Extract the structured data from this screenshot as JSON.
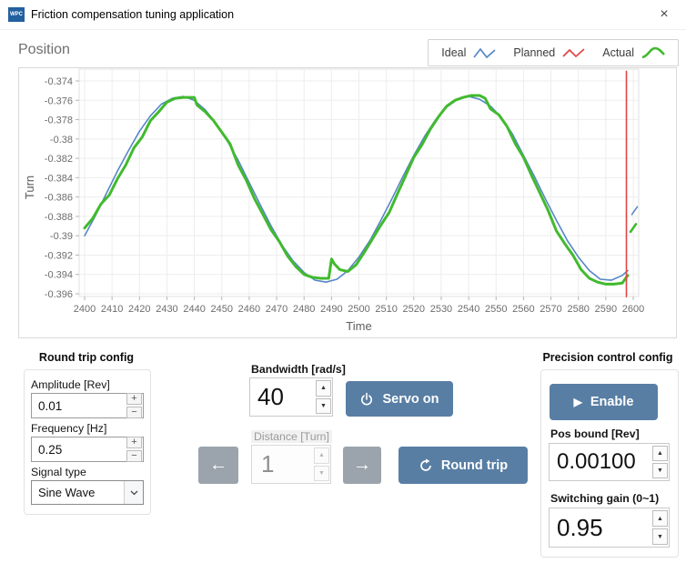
{
  "window": {
    "title": "Friction compensation tuning application",
    "close": "×",
    "app_badge": "WPC"
  },
  "chart_data": {
    "type": "line",
    "title": "Position",
    "xlabel": "Time",
    "ylabel": "Turn",
    "xlim": [
      2398,
      2602
    ],
    "ylim": [
      -0.3966,
      -0.3729
    ],
    "grid": true,
    "legend_position": "top-right",
    "x_ticks": [
      2400,
      2410,
      2420,
      2430,
      2440,
      2450,
      2460,
      2470,
      2480,
      2490,
      2500,
      2510,
      2520,
      2530,
      2540,
      2550,
      2560,
      2570,
      2580,
      2590,
      2600
    ],
    "y_ticks": [
      -0.374,
      -0.376,
      -0.378,
      -0.38,
      -0.382,
      -0.384,
      -0.386,
      -0.388,
      -0.39,
      -0.392,
      -0.394,
      -0.396
    ],
    "y_tick_labels": [
      "-0.374",
      "-0.376",
      "-0.378",
      "-0.38",
      "-0.382",
      "-0.384",
      "-0.386",
      "-0.388",
      "-0.39",
      "-0.392",
      "-0.394",
      "-0.396"
    ],
    "legend_items": [
      {
        "label": "Ideal",
        "color": "#5687c5"
      },
      {
        "label": "Planned",
        "color": "#e04545"
      },
      {
        "label": "Actual",
        "color": "#41ba2e"
      }
    ],
    "series": [
      {
        "name": "Ideal",
        "color": "#5687c5",
        "width": 1.6,
        "points": [
          [
            2400,
            -0.39
          ],
          [
            2404,
            -0.3879
          ],
          [
            2408,
            -0.3856
          ],
          [
            2412,
            -0.3833
          ],
          [
            2416,
            -0.3812
          ],
          [
            2420,
            -0.3792
          ],
          [
            2424,
            -0.3776
          ],
          [
            2428,
            -0.3764
          ],
          [
            2432,
            -0.3758
          ],
          [
            2436,
            -0.3756
          ],
          [
            2440,
            -0.376
          ],
          [
            2444,
            -0.377
          ],
          [
            2448,
            -0.3784
          ],
          [
            2452,
            -0.3802
          ],
          [
            2456,
            -0.3822
          ],
          [
            2460,
            -0.3845
          ],
          [
            2464,
            -0.3868
          ],
          [
            2468,
            -0.389
          ],
          [
            2472,
            -0.391
          ],
          [
            2476,
            -0.3926
          ],
          [
            2480,
            -0.3938
          ],
          [
            2484,
            -0.3946
          ],
          [
            2488,
            -0.3948
          ],
          [
            2492,
            -0.3945
          ],
          [
            2496,
            -0.3936
          ],
          [
            2500,
            -0.3922
          ],
          [
            2504,
            -0.3905
          ],
          [
            2508,
            -0.3884
          ],
          [
            2512,
            -0.3862
          ],
          [
            2516,
            -0.3839
          ],
          [
            2520,
            -0.3817
          ],
          [
            2524,
            -0.3797
          ],
          [
            2528,
            -0.378
          ],
          [
            2532,
            -0.3767
          ],
          [
            2536,
            -0.3759
          ],
          [
            2540,
            -0.3756
          ],
          [
            2544,
            -0.3759
          ],
          [
            2548,
            -0.3766
          ],
          [
            2552,
            -0.3778
          ],
          [
            2556,
            -0.3795
          ],
          [
            2560,
            -0.3817
          ],
          [
            2564,
            -0.3839
          ],
          [
            2568,
            -0.3862
          ],
          [
            2572,
            -0.3884
          ],
          [
            2576,
            -0.3905
          ],
          [
            2580,
            -0.3922
          ],
          [
            2584,
            -0.3936
          ],
          [
            2588,
            -0.3945
          ],
          [
            2592,
            -0.3946
          ],
          [
            2596,
            -0.3941
          ],
          [
            2598,
            -0.3936
          ]
        ]
      },
      {
        "name": "Actual",
        "color": "#41ba2e",
        "width": 3,
        "points": [
          [
            2400,
            -0.3892
          ],
          [
            2403,
            -0.3882
          ],
          [
            2406,
            -0.3867
          ],
          [
            2409,
            -0.3858
          ],
          [
            2412,
            -0.3841
          ],
          [
            2415,
            -0.3827
          ],
          [
            2418,
            -0.3809
          ],
          [
            2421,
            -0.3798
          ],
          [
            2424,
            -0.3781
          ],
          [
            2427,
            -0.3772
          ],
          [
            2430,
            -0.3762
          ],
          [
            2433,
            -0.3758
          ],
          [
            2436,
            -0.3757
          ],
          [
            2440,
            -0.3757
          ],
          [
            2441,
            -0.3765
          ],
          [
            2444,
            -0.3772
          ],
          [
            2447,
            -0.3781
          ],
          [
            2450,
            -0.3793
          ],
          [
            2453,
            -0.3805
          ],
          [
            2456,
            -0.3827
          ],
          [
            2459,
            -0.3843
          ],
          [
            2462,
            -0.3862
          ],
          [
            2465,
            -0.3878
          ],
          [
            2468,
            -0.3894
          ],
          [
            2471,
            -0.3906
          ],
          [
            2474,
            -0.3921
          ],
          [
            2477,
            -0.3932
          ],
          [
            2480,
            -0.394
          ],
          [
            2483,
            -0.3943
          ],
          [
            2486,
            -0.3944
          ],
          [
            2489,
            -0.3944
          ],
          [
            2490,
            -0.3924
          ],
          [
            2491,
            -0.3929
          ],
          [
            2493,
            -0.3935
          ],
          [
            2496,
            -0.3937
          ],
          [
            2499,
            -0.393
          ],
          [
            2502,
            -0.3917
          ],
          [
            2505,
            -0.3903
          ],
          [
            2508,
            -0.3889
          ],
          [
            2511,
            -0.3876
          ],
          [
            2514,
            -0.3857
          ],
          [
            2517,
            -0.3838
          ],
          [
            2520,
            -0.3819
          ],
          [
            2523,
            -0.3806
          ],
          [
            2526,
            -0.379
          ],
          [
            2529,
            -0.3777
          ],
          [
            2532,
            -0.3766
          ],
          [
            2535,
            -0.376
          ],
          [
            2538,
            -0.3757
          ],
          [
            2541,
            -0.3755
          ],
          [
            2544,
            -0.3755
          ],
          [
            2546,
            -0.3758
          ],
          [
            2548,
            -0.3769
          ],
          [
            2551,
            -0.3775
          ],
          [
            2554,
            -0.3787
          ],
          [
            2557,
            -0.3805
          ],
          [
            2560,
            -0.3819
          ],
          [
            2563,
            -0.3838
          ],
          [
            2566,
            -0.3856
          ],
          [
            2569,
            -0.3874
          ],
          [
            2572,
            -0.3895
          ],
          [
            2575,
            -0.3908
          ],
          [
            2578,
            -0.392
          ],
          [
            2581,
            -0.3935
          ],
          [
            2584,
            -0.3944
          ],
          [
            2587,
            -0.3948
          ],
          [
            2590,
            -0.395
          ],
          [
            2593,
            -0.395
          ],
          [
            2596,
            -0.3949
          ],
          [
            2598,
            -0.3941
          ]
        ]
      },
      {
        "name": "Ideal-next-cycle",
        "color": "#5687c5",
        "width": 1.6,
        "points": [
          [
            2599.5,
            -0.3878
          ],
          [
            2601.5,
            -0.387
          ]
        ]
      },
      {
        "name": "Actual-next-cycle",
        "color": "#41ba2e",
        "width": 2.6,
        "points": [
          [
            2599,
            -0.3896
          ],
          [
            2601,
            -0.3888
          ]
        ]
      },
      {
        "name": "Planned",
        "color": "#e04545",
        "width": 1.6,
        "points": [
          [
            2597.5,
            -0.373
          ],
          [
            2597.5,
            -0.3963
          ]
        ]
      }
    ]
  },
  "panel_left": {
    "title": "Round trip config",
    "amplitude_label": "Amplitude [Rev]",
    "amplitude_value": "0.01",
    "frequency_label": "Frequency [Hz]",
    "frequency_value": "0.25",
    "signal_type_label": "Signal type",
    "signal_type_value": "Sine Wave"
  },
  "panel_center": {
    "bandwidth_label": "Bandwidth [rad/s]",
    "bandwidth_value": "40",
    "servo_on_label": "Servo on",
    "distance_label": "Distance [Turn]",
    "distance_value": "1",
    "round_trip_label": "Round trip",
    "left_arrow": "←",
    "right_arrow": "→"
  },
  "panel_right": {
    "title": "Precision control config",
    "enable_label": "Enable",
    "pos_bound_label": "Pos bound [Rev]",
    "pos_bound_value": "0.00100",
    "switching_gain_label": "Switching gain (0~1)",
    "switching_gain_value": "0.95"
  },
  "glyphs": {
    "plus": "+",
    "minus": "−",
    "up": "▲",
    "down": "▼",
    "play": "▶"
  }
}
